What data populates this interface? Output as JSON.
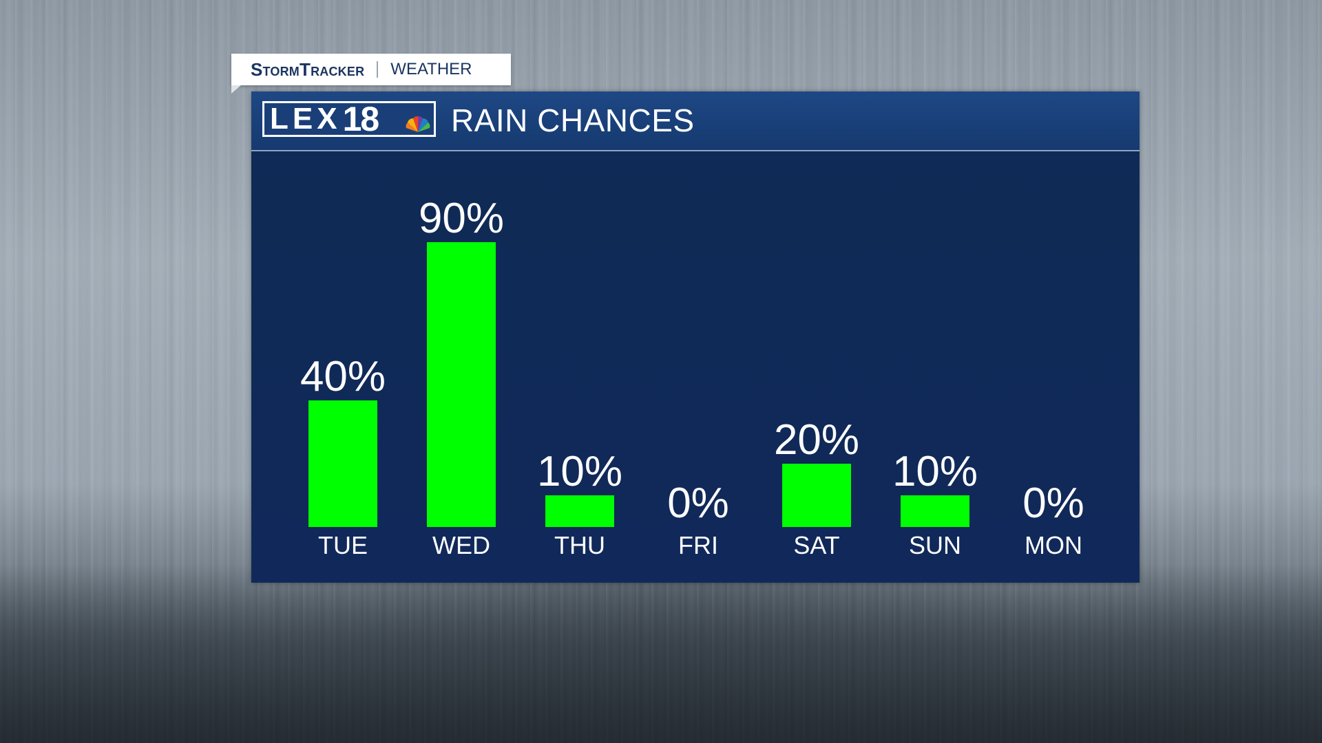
{
  "tag": {
    "brand": "StormTracker",
    "section": "WEATHER"
  },
  "panel": {
    "logo_text": "LEX",
    "logo_number": "18",
    "title": "RAIN CHANCES"
  },
  "colors": {
    "bar": "#00ff00",
    "panel_bg": "#11295a",
    "header_bg": "#1e4784",
    "text": "#ffffff"
  },
  "chart_data": {
    "type": "bar",
    "title": "RAIN CHANCES",
    "categories": [
      "TUE",
      "WED",
      "THU",
      "FRI",
      "SAT",
      "SUN",
      "MON"
    ],
    "values": [
      40,
      90,
      10,
      0,
      20,
      10,
      0
    ],
    "value_labels": [
      "40%",
      "90%",
      "10%",
      "0%",
      "20%",
      "10%",
      "0%"
    ],
    "ylim": [
      0,
      100
    ],
    "unit": "%",
    "grid": false,
    "legend": "none"
  }
}
